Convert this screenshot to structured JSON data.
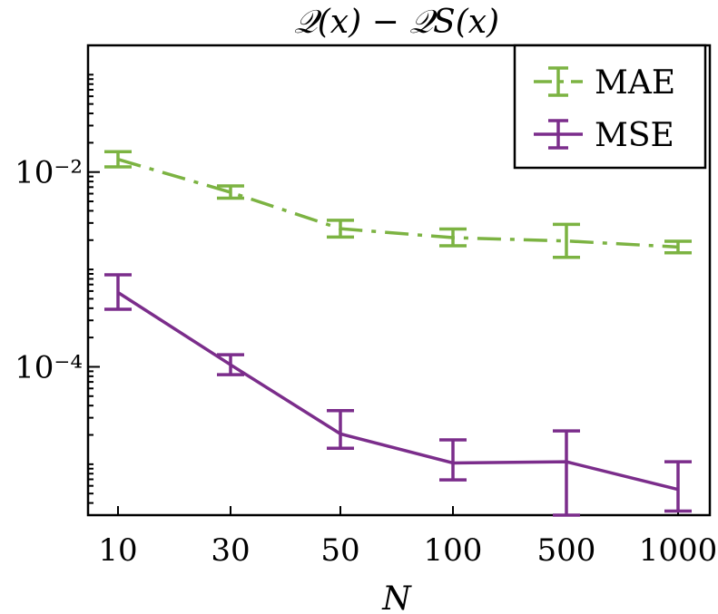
{
  "chart_data": {
    "type": "line",
    "title": "𝒬(x) − 𝒬S(x)",
    "xlabel": "N",
    "ylabel": "",
    "yscale": "log",
    "ylim": [
      3e-06,
      0.2
    ],
    "categories": [
      "10",
      "30",
      "50",
      "100",
      "500",
      "1000"
    ],
    "yticks": [
      {
        "value": 0.01,
        "label": "10⁻²"
      },
      {
        "value": 0.0001,
        "label": "10⁻⁴"
      }
    ],
    "legend_position": "top-right",
    "series": [
      {
        "name": "MAE",
        "color": "#7cb342",
        "dash": "dashdot",
        "values": [
          0.0135,
          0.0062,
          0.00262,
          0.00212,
          0.00196,
          0.0017
        ],
        "err_low": [
          0.0113,
          0.0054,
          0.00215,
          0.00175,
          0.00133,
          0.00148
        ],
        "err_high": [
          0.0162,
          0.0072,
          0.0032,
          0.0026,
          0.0029,
          0.00195
        ]
      },
      {
        "name": "MSE",
        "color": "#7b2d8b",
        "dash": "solid",
        "values": [
          0.00058,
          0.000105,
          2.05e-05,
          1.03e-05,
          1.06e-05,
          5.5e-06
        ],
        "err_low": [
          0.00039,
          8.3e-05,
          1.46e-05,
          6.9e-06,
          3e-06,
          3.3e-06
        ],
        "err_high": [
          0.00088,
          0.000133,
          3.55e-05,
          1.78e-05,
          2.2e-05,
          1.06e-05
        ]
      }
    ]
  }
}
